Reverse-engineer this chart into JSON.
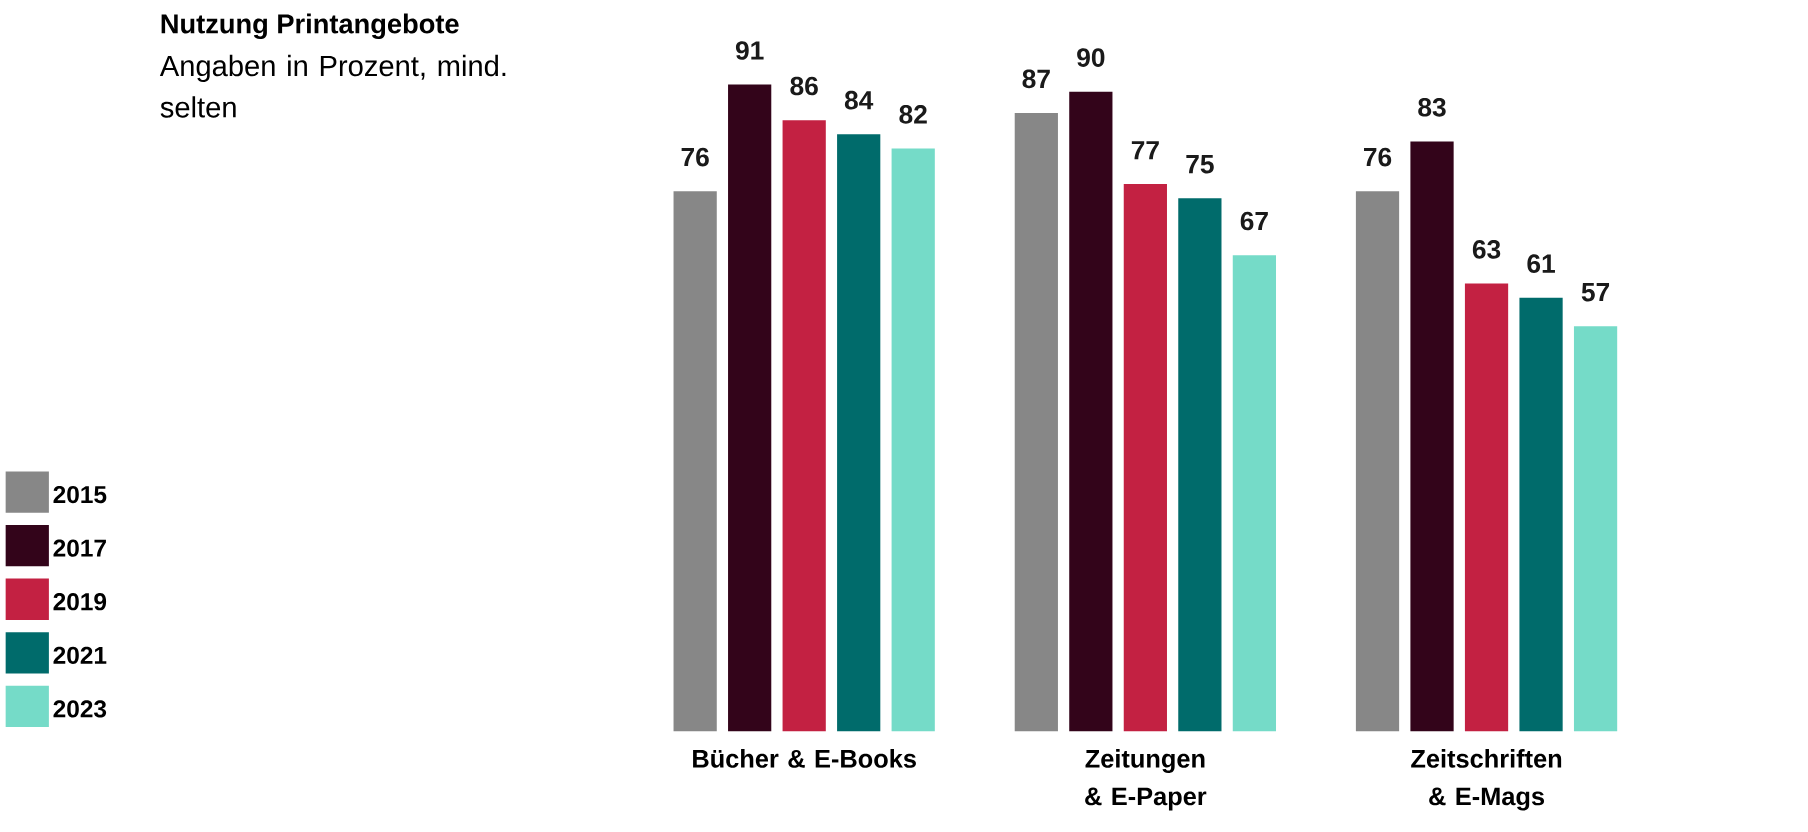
{
  "chart_data": {
    "type": "bar",
    "title": "Nutzung Printangebote",
    "subtitle": "Angaben in Prozent, mind. selten",
    "categories": [
      "Bücher & E-Books",
      "Zeitungen & E-Paper",
      "Zeitschriften & E-Mags"
    ],
    "series": [
      {
        "name": "2015",
        "color": "#878787",
        "values": [
          76,
          87,
          76
        ]
      },
      {
        "name": "2017",
        "color": "#33041a",
        "values": [
          91,
          90,
          83
        ]
      },
      {
        "name": "2019",
        "color": "#c32142",
        "values": [
          86,
          77,
          63
        ]
      },
      {
        "name": "2021",
        "color": "#006b6b",
        "values": [
          84,
          75,
          61
        ]
      },
      {
        "name": "2023",
        "color": "#75dbc8",
        "values": [
          82,
          67,
          57
        ]
      }
    ],
    "data_labels": true,
    "legend": "left",
    "tick_labels": "x"
  }
}
